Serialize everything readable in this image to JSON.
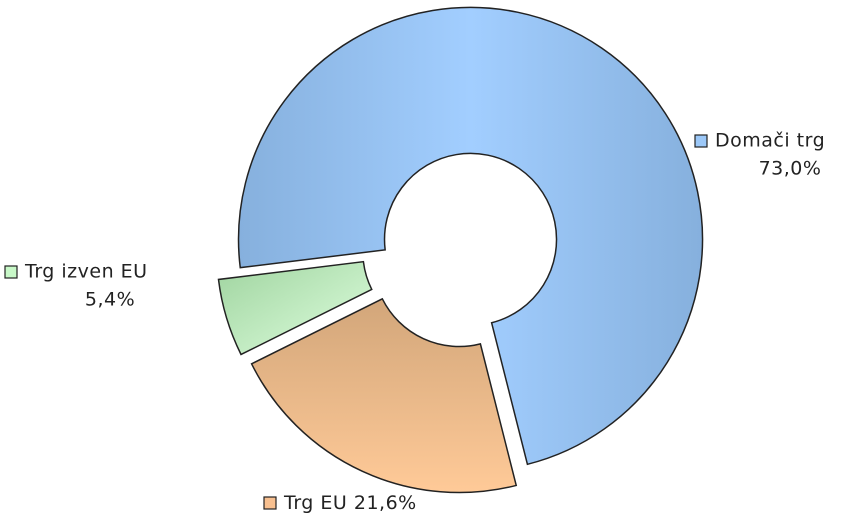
{
  "chart_data": {
    "type": "donut",
    "categories": [
      "Domači trg",
      "Trg EU",
      "Trg izven EU"
    ],
    "values": [
      73.0,
      21.6,
      5.4
    ],
    "value_labels": [
      "73,0%",
      "21,6%",
      "5,4%"
    ],
    "colors": [
      "#9cc8f8",
      "#f8c090",
      "#c8f8c8"
    ]
  }
}
